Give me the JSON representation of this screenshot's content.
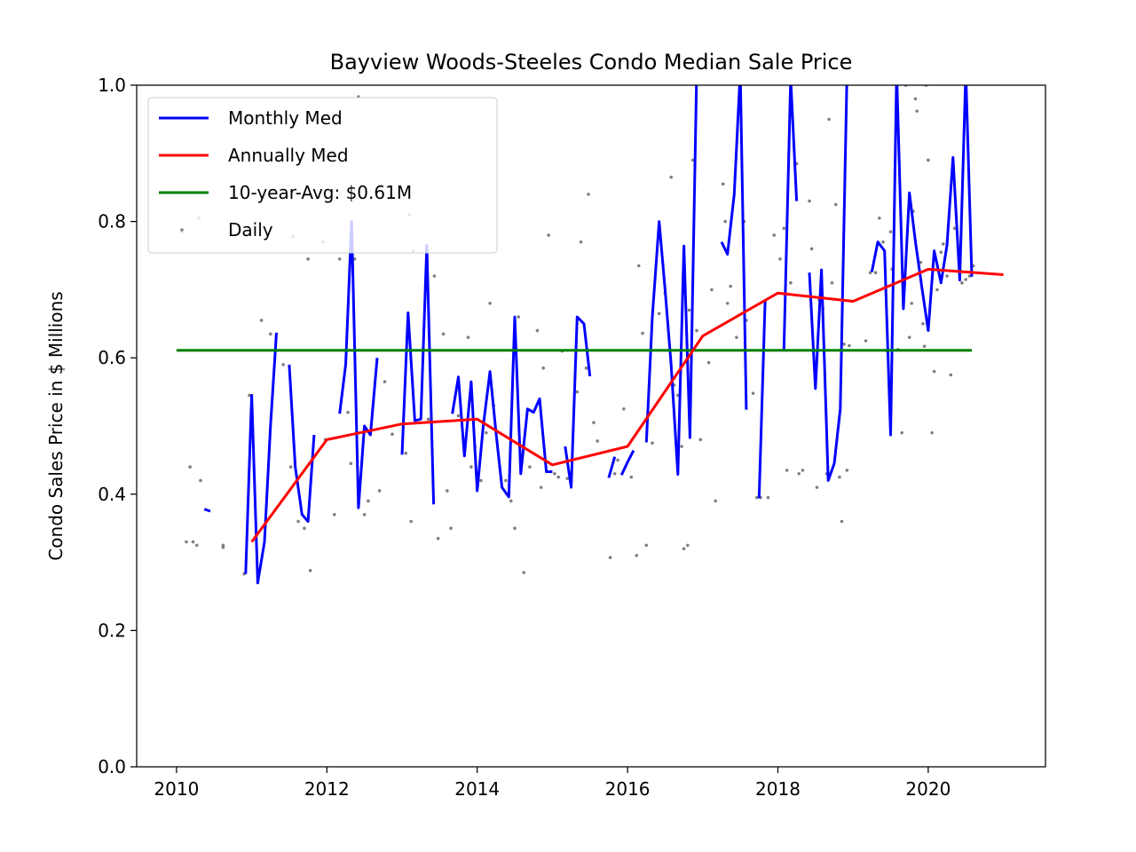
{
  "chart_data": {
    "type": "line",
    "title": "Bayview Woods-Steeles Condo Median Sale Price",
    "xlabel": "",
    "ylabel": "Condo Sales Price in $ Millions",
    "xlim": [
      2009.47,
      2021.56
    ],
    "ylim": [
      0.0,
      1.0
    ],
    "x_ticks": [
      2010,
      2012,
      2014,
      2016,
      2018,
      2020
    ],
    "y_ticks": [
      0.0,
      0.2,
      0.4,
      0.6,
      0.8,
      1.0
    ],
    "x_tick_labels": [
      "2010",
      "2012",
      "2014",
      "2016",
      "2018",
      "2020"
    ],
    "y_tick_labels": [
      "0.0",
      "0.2",
      "0.4",
      "0.6",
      "0.8",
      "1.0"
    ],
    "grid": false,
    "legend_position": "top-left",
    "series": [
      {
        "name": "Monthly Med",
        "kind": "line",
        "color": "#0000ff",
        "segments": [
          [
            [
              2010.37,
              0.378
            ],
            [
              2010.45,
              0.375
            ]
          ],
          [
            [
              2010.92,
              0.283
            ],
            [
              2011.0,
              0.545
            ],
            [
              2011.08,
              0.27
            ],
            [
              2011.17,
              0.33
            ],
            [
              2011.25,
              0.5
            ],
            [
              2011.33,
              0.637
            ]
          ],
          [
            [
              2011.5,
              0.59
            ],
            [
              2011.58,
              0.44
            ],
            [
              2011.67,
              0.37
            ],
            [
              2011.75,
              0.36
            ],
            [
              2011.83,
              0.487
            ]
          ],
          [
            [
              2012.17,
              0.518
            ],
            [
              2012.25,
              0.59
            ],
            [
              2012.33,
              0.8
            ],
            [
              2012.42,
              0.38
            ],
            [
              2012.5,
              0.5
            ],
            [
              2012.58,
              0.487
            ],
            [
              2012.67,
              0.6
            ]
          ],
          [
            [
              2013.0,
              0.458
            ],
            [
              2013.08,
              0.666
            ],
            [
              2013.17,
              0.508
            ],
            [
              2013.25,
              0.51
            ],
            [
              2013.33,
              0.765
            ],
            [
              2013.42,
              0.385
            ]
          ],
          [
            [
              2013.67,
              0.518
            ],
            [
              2013.75,
              0.572
            ],
            [
              2013.83,
              0.456
            ],
            [
              2013.92,
              0.565
            ],
            [
              2014.0,
              0.405
            ],
            [
              2014.08,
              0.5
            ],
            [
              2014.17,
              0.58
            ],
            [
              2014.25,
              0.49
            ],
            [
              2014.33,
              0.41
            ],
            [
              2014.42,
              0.396
            ],
            [
              2014.5,
              0.66
            ],
            [
              2014.58,
              0.43
            ],
            [
              2014.67,
              0.525
            ],
            [
              2014.75,
              0.52
            ],
            [
              2014.83,
              0.54
            ],
            [
              2014.92,
              0.433
            ],
            [
              2015.0,
              0.433
            ]
          ],
          [
            [
              2015.17,
              0.47
            ],
            [
              2015.25,
              0.41
            ],
            [
              2015.33,
              0.66
            ],
            [
              2015.42,
              0.65
            ],
            [
              2015.5,
              0.573
            ]
          ],
          [
            [
              2015.75,
              0.424
            ],
            [
              2015.83,
              0.455
            ]
          ],
          [
            [
              2015.92,
              0.428
            ],
            [
              2016.0,
              0.447
            ],
            [
              2016.08,
              0.464
            ]
          ],
          [
            [
              2016.25,
              0.476
            ],
            [
              2016.33,
              0.66
            ],
            [
              2016.42,
              0.8
            ],
            [
              2016.5,
              0.7
            ],
            [
              2016.58,
              0.59
            ],
            [
              2016.67,
              0.429
            ],
            [
              2016.75,
              0.764
            ],
            [
              2016.83,
              0.483
            ],
            [
              2016.92,
              1.02
            ]
          ],
          [
            [
              2017.25,
              0.77
            ],
            [
              2017.33,
              0.752
            ],
            [
              2017.42,
              0.84
            ],
            [
              2017.5,
              1.02
            ],
            [
              2017.58,
              0.524
            ]
          ],
          [
            [
              2017.75,
              0.394
            ],
            [
              2017.83,
              0.683
            ]
          ],
          [
            [
              2018.08,
              0.612
            ],
            [
              2018.17,
              1.01
            ],
            [
              2018.25,
              0.83
            ]
          ],
          [
            [
              2018.42,
              0.725
            ],
            [
              2018.5,
              0.555
            ],
            [
              2018.58,
              0.729
            ],
            [
              2018.67,
              0.42
            ],
            [
              2018.75,
              0.445
            ],
            [
              2018.83,
              0.525
            ],
            [
              2018.92,
              1.02
            ]
          ],
          [
            [
              2019.25,
              0.726
            ],
            [
              2019.33,
              0.77
            ],
            [
              2019.42,
              0.757
            ],
            [
              2019.5,
              0.487
            ],
            [
              2019.58,
              1.02
            ],
            [
              2019.67,
              0.672
            ],
            [
              2019.75,
              0.842
            ],
            [
              2019.83,
              0.77
            ],
            [
              2019.92,
              0.7
            ],
            [
              2020.0,
              0.64
            ],
            [
              2020.08,
              0.757
            ],
            [
              2020.17,
              0.71
            ],
            [
              2020.25,
              0.765
            ],
            [
              2020.33,
              0.894
            ],
            [
              2020.42,
              0.714
            ],
            [
              2020.5,
              1.02
            ],
            [
              2020.58,
              0.719
            ]
          ]
        ]
      },
      {
        "name": "Annually Med",
        "kind": "line",
        "color": "#ff0000",
        "x": [
          2011.0,
          2012.0,
          2013.0,
          2014.0,
          2015.0,
          2016.0,
          2017.0,
          2018.0,
          2019.0,
          2020.0,
          2021.0
        ],
        "y": [
          0.33,
          0.48,
          0.503,
          0.51,
          0.443,
          0.47,
          0.632,
          0.695,
          0.683,
          0.73,
          0.722
        ]
      },
      {
        "name": "10-year-Avg: $0.61M",
        "kind": "line",
        "color": "#008000",
        "x": [
          2010.0,
          2020.58
        ],
        "y": [
          0.611,
          0.611
        ]
      },
      {
        "name": "Daily",
        "kind": "scatter",
        "color": "#808080",
        "points": [
          [
            2010.07,
            0.785
          ],
          [
            2010.13,
            0.33
          ],
          [
            2010.18,
            0.44
          ],
          [
            2010.22,
            0.33
          ],
          [
            2010.27,
            0.325
          ],
          [
            2010.3,
            0.805
          ],
          [
            2010.32,
            0.42
          ],
          [
            2010.62,
            0.322
          ],
          [
            2010.62,
            0.325
          ],
          [
            2010.9,
            0.283
          ],
          [
            2010.97,
            0.545
          ],
          [
            2011.08,
            0.27
          ],
          [
            2011.13,
            0.655
          ],
          [
            2011.25,
            0.635
          ],
          [
            2011.42,
            0.59
          ],
          [
            2011.52,
            0.44
          ],
          [
            2011.55,
            0.778
          ],
          [
            2011.62,
            0.36
          ],
          [
            2011.7,
            0.35
          ],
          [
            2011.75,
            0.745
          ],
          [
            2011.78,
            0.288
          ],
          [
            2011.95,
            0.77
          ],
          [
            2011.98,
            0.48
          ],
          [
            2012.1,
            0.37
          ],
          [
            2012.17,
            0.745
          ],
          [
            2012.28,
            0.52
          ],
          [
            2012.32,
            0.445
          ],
          [
            2012.37,
            0.745
          ],
          [
            2012.42,
            0.983
          ],
          [
            2012.5,
            0.37
          ],
          [
            2012.55,
            0.39
          ],
          [
            2012.7,
            0.405
          ],
          [
            2012.77,
            0.565
          ],
          [
            2012.87,
            0.488
          ],
          [
            2013.05,
            0.46
          ],
          [
            2013.1,
            0.81
          ],
          [
            2013.12,
            0.36
          ],
          [
            2013.15,
            0.757
          ],
          [
            2013.35,
            0.51
          ],
          [
            2013.43,
            0.72
          ],
          [
            2013.48,
            0.335
          ],
          [
            2013.55,
            0.635
          ],
          [
            2013.6,
            0.405
          ],
          [
            2013.65,
            0.35
          ],
          [
            2013.75,
            0.515
          ],
          [
            2013.88,
            0.63
          ],
          [
            2013.92,
            0.44
          ],
          [
            2013.97,
            0.47
          ],
          [
            2014.05,
            0.42
          ],
          [
            2014.12,
            0.49
          ],
          [
            2014.17,
            0.68
          ],
          [
            2014.22,
            0.53
          ],
          [
            2014.3,
            0.44
          ],
          [
            2014.38,
            0.42
          ],
          [
            2014.45,
            0.39
          ],
          [
            2014.5,
            0.35
          ],
          [
            2014.55,
            0.66
          ],
          [
            2014.62,
            0.285
          ],
          [
            2014.7,
            0.44
          ],
          [
            2014.8,
            0.64
          ],
          [
            2014.85,
            0.41
          ],
          [
            2014.88,
            0.585
          ],
          [
            2014.95,
            0.78
          ],
          [
            2015.03,
            0.43
          ],
          [
            2015.08,
            0.425
          ],
          [
            2015.13,
            0.61
          ],
          [
            2015.2,
            0.423
          ],
          [
            2015.33,
            0.55
          ],
          [
            2015.38,
            0.77
          ],
          [
            2015.45,
            0.585
          ],
          [
            2015.48,
            0.84
          ],
          [
            2015.55,
            0.505
          ],
          [
            2015.6,
            0.478
          ],
          [
            2015.77,
            0.307
          ],
          [
            2015.83,
            0.43
          ],
          [
            2015.87,
            0.45
          ],
          [
            2015.95,
            0.525
          ],
          [
            2016.05,
            0.425
          ],
          [
            2016.12,
            0.31
          ],
          [
            2016.15,
            0.735
          ],
          [
            2016.2,
            0.636
          ],
          [
            2016.25,
            0.325
          ],
          [
            2016.33,
            0.475
          ],
          [
            2016.42,
            0.665
          ],
          [
            2016.5,
            0.695
          ],
          [
            2016.58,
            0.865
          ],
          [
            2016.62,
            0.56
          ],
          [
            2016.67,
            0.545
          ],
          [
            2016.72,
            0.47
          ],
          [
            2016.75,
            0.32
          ],
          [
            2016.8,
            0.325
          ],
          [
            2016.82,
            0.67
          ],
          [
            2016.87,
            0.89
          ],
          [
            2016.92,
            0.64
          ],
          [
            2016.97,
            0.48
          ],
          [
            2017.08,
            0.593
          ],
          [
            2017.12,
            0.7
          ],
          [
            2017.17,
            0.39
          ],
          [
            2017.27,
            0.855
          ],
          [
            2017.3,
            0.8
          ],
          [
            2017.33,
            0.68
          ],
          [
            2017.37,
            0.705
          ],
          [
            2017.45,
            0.63
          ],
          [
            2017.55,
            0.8
          ],
          [
            2017.58,
            0.655
          ],
          [
            2017.67,
            0.548
          ],
          [
            2017.72,
            0.395
          ],
          [
            2017.77,
            0.395
          ],
          [
            2017.87,
            0.395
          ],
          [
            2017.95,
            0.78
          ],
          [
            2018.03,
            0.745
          ],
          [
            2018.08,
            0.79
          ],
          [
            2018.12,
            0.435
          ],
          [
            2018.17,
            0.71
          ],
          [
            2018.25,
            0.885
          ],
          [
            2018.28,
            0.43
          ],
          [
            2018.33,
            0.435
          ],
          [
            2018.42,
            0.83
          ],
          [
            2018.45,
            0.76
          ],
          [
            2018.52,
            0.41
          ],
          [
            2018.55,
            0.685
          ],
          [
            2018.6,
            0.672
          ],
          [
            2018.65,
            0.43
          ],
          [
            2018.68,
            0.95
          ],
          [
            2018.72,
            0.71
          ],
          [
            2018.77,
            0.825
          ],
          [
            2018.82,
            0.425
          ],
          [
            2018.85,
            0.36
          ],
          [
            2018.88,
            0.62
          ],
          [
            2018.92,
            0.435
          ],
          [
            2018.95,
            0.618
          ],
          [
            2019.17,
            0.625
          ],
          [
            2019.23,
            0.725
          ],
          [
            2019.3,
            0.725
          ],
          [
            2019.35,
            0.805
          ],
          [
            2019.4,
            0.77
          ],
          [
            2019.45,
            0.61
          ],
          [
            2019.5,
            0.785
          ],
          [
            2019.52,
            0.73
          ],
          [
            2019.6,
            0.612
          ],
          [
            2019.65,
            0.49
          ],
          [
            2019.7,
            1.0
          ],
          [
            2019.75,
            0.63
          ],
          [
            2019.78,
            0.68
          ],
          [
            2019.8,
            0.815
          ],
          [
            2019.83,
            0.98
          ],
          [
            2019.85,
            0.962
          ],
          [
            2019.9,
            0.74
          ],
          [
            2019.93,
            0.65
          ],
          [
            2019.95,
            0.617
          ],
          [
            2019.97,
            1.0
          ],
          [
            2020.0,
            0.89
          ],
          [
            2020.05,
            0.49
          ],
          [
            2020.08,
            0.58
          ],
          [
            2020.12,
            0.7
          ],
          [
            2020.17,
            0.755
          ],
          [
            2020.2,
            0.767
          ],
          [
            2020.25,
            0.72
          ],
          [
            2020.3,
            0.575
          ],
          [
            2020.35,
            0.79
          ],
          [
            2020.45,
            0.71
          ],
          [
            2020.5,
            0.715
          ],
          [
            2020.55,
            0.72
          ],
          [
            2020.6,
            0.735
          ]
        ]
      }
    ]
  }
}
